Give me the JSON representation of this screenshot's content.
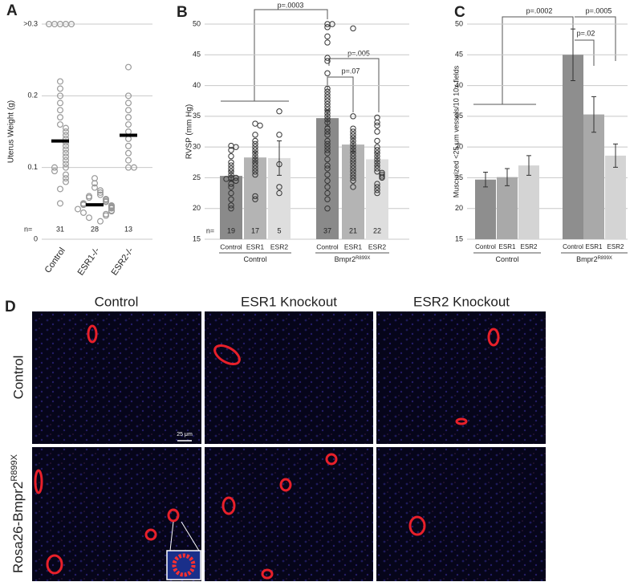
{
  "chart_data": [
    {
      "type": "strip",
      "panel": "A",
      "ylabel": "Uterus Weight (g)",
      "categories": [
        "Control",
        "ESR1-/-",
        "ESR2-/-"
      ],
      "points": [
        [
          0.3,
          0.3,
          0.3,
          0.3,
          0.3,
          0.22,
          0.21,
          0.2,
          0.19,
          0.18,
          0.17,
          0.16,
          0.155,
          0.15,
          0.145,
          0.14,
          0.135,
          0.13,
          0.125,
          0.12,
          0.115,
          0.11,
          0.105,
          0.1,
          0.1,
          0.095,
          0.09,
          0.085,
          0.08,
          0.07,
          0.05
        ],
        [
          0.085,
          0.078,
          0.072,
          0.068,
          0.065,
          0.062,
          0.06,
          0.058,
          0.056,
          0.055,
          0.053,
          0.052,
          0.05,
          0.049,
          0.048,
          0.047,
          0.046,
          0.045,
          0.044,
          0.043,
          0.042,
          0.04,
          0.039,
          0.037,
          0.035,
          0.033,
          0.03,
          0.025
        ],
        [
          0.24,
          0.2,
          0.19,
          0.18,
          0.17,
          0.16,
          0.15,
          0.14,
          0.13,
          0.12,
          0.11,
          0.1,
          0.1
        ]
      ],
      "mean": [
        0.137,
        0.048,
        0.145
      ],
      "n_label": "n=",
      "n": [
        31,
        28,
        13
      ],
      "ylim": [
        0,
        0.3
      ],
      "yticks": [
        0,
        0.1,
        0.2,
        {
          "value": 0.3,
          "label": ">0.3"
        }
      ],
      "grid": true
    },
    {
      "type": "bar",
      "panel": "B",
      "ylabel": "RVSP (mm Hg)",
      "categories": [
        "Control",
        "ESR1",
        "ESR2",
        "Control",
        "ESR1",
        "ESR2"
      ],
      "groups": [
        {
          "name": "Control"
        },
        {
          "name": "Bmpr2",
          "superscript": "R899X"
        }
      ],
      "values": [
        25.3,
        28.3,
        28.2,
        34.7,
        30.4,
        28.0
      ],
      "errors": [
        0.8,
        0.9,
        2.8,
        1.3,
        1.2,
        1.1
      ],
      "colors": [
        "#8a8a8a",
        "#b4b4b4",
        "#dedede",
        "#8a8a8a",
        "#b4b4b4",
        "#dedede"
      ],
      "points": [
        [
          30.2,
          30,
          29.5,
          28.5,
          27.5,
          27,
          26.5,
          26,
          25.5,
          25,
          25,
          24.8,
          24.5,
          24,
          23.5,
          22.5,
          21.5,
          20.5,
          20
        ],
        [
          33.8,
          33.5,
          32,
          31,
          30.5,
          30,
          29.5,
          29,
          28.5,
          28,
          27.5,
          27,
          26.5,
          26,
          25.5,
          22,
          21.5
        ],
        [
          35.8,
          32,
          27.2,
          23.5,
          22.5
        ],
        [
          50,
          50,
          49.5,
          48,
          47,
          44.5,
          44,
          42,
          39.5,
          39,
          38.5,
          38,
          37.5,
          37,
          36.5,
          36,
          35.5,
          35,
          34.5,
          34,
          33,
          32.5,
          32,
          31,
          30.5,
          30,
          29.5,
          29,
          28,
          27,
          26.5,
          25.5,
          24.5,
          23.5,
          22.5,
          21.5,
          20
        ],
        [
          49.3,
          35,
          33,
          32.5,
          32,
          31.5,
          31,
          30.5,
          30,
          29.5,
          29,
          28.5,
          28,
          27.5,
          27,
          26.5,
          26,
          25.5,
          25,
          24.5,
          23.5
        ],
        [
          34.8,
          34,
          33.5,
          32.5,
          31,
          30,
          29.5,
          29,
          28.5,
          28,
          27.5,
          27,
          26.5,
          26,
          25.8,
          25.5,
          25.2,
          25,
          24,
          23.5,
          23,
          22.5
        ]
      ],
      "n_label": "n=",
      "n": [
        19,
        17,
        5,
        37,
        21,
        22
      ],
      "annotations": [
        "p=.0003",
        "p=.07",
        "p=.005"
      ],
      "ylim": [
        15,
        50
      ],
      "yticks": [
        15,
        20,
        25,
        30,
        35,
        40,
        45,
        50
      ],
      "grid": true
    },
    {
      "type": "bar",
      "panel": "C",
      "ylabel": "Muscurized <25 μm vessels/10 10x fields",
      "categories": [
        "Control",
        "ESR1",
        "ESR2",
        "Control",
        "ESR1",
        "ESR2"
      ],
      "groups": [
        {
          "name": "Control"
        },
        {
          "name": "Bmpr2",
          "superscript": "R899X"
        }
      ],
      "values": [
        24.7,
        25.1,
        27.0,
        45.0,
        35.3,
        28.6
      ],
      "errors": [
        1.2,
        1.4,
        1.6,
        4.2,
        2.9,
        1.9
      ],
      "colors": [
        "#8e8e8e",
        "#a9a9a9",
        "#d4d4d4",
        "#8e8e8e",
        "#a9a9a9",
        "#d4d4d4"
      ],
      "annotations": [
        "p=.0002",
        "p=.0005",
        "p=.02"
      ],
      "ylim": [
        15,
        50
      ],
      "yticks": [
        15,
        20,
        25,
        30,
        35,
        40,
        45,
        50
      ],
      "grid": true
    }
  ],
  "panel_d": {
    "panel": "D",
    "columns": [
      "Control",
      "ESR1 Knockout",
      "ESR2 Knockout"
    ],
    "rows": [
      {
        "name": "Control"
      },
      {
        "name": "Rosa26-Bmpr2",
        "superscript": "R899X"
      }
    ],
    "scale_bar": "25 μm"
  }
}
